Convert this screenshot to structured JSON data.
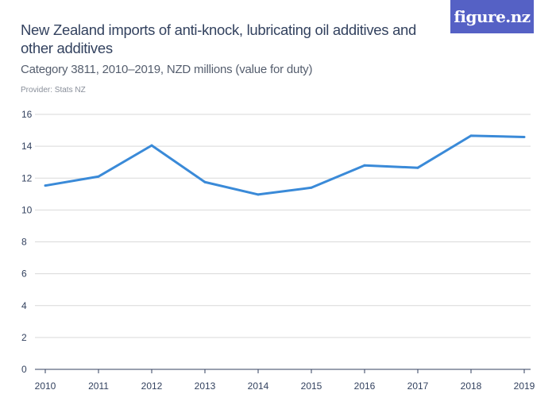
{
  "header": {
    "title": "New Zealand imports of anti-knock, lubricating oil additives and other additives",
    "subtitle": "Category 3811, 2010–2019, NZD millions (value for duty)",
    "provider": "Provider: Stats NZ",
    "logo_text": "figure.nz",
    "logo_color": "#5561c5"
  },
  "chart_data": {
    "type": "line",
    "title": "New Zealand imports of anti-knock, lubricating oil additives and other additives",
    "subtitle": "Category 3811, 2010–2019, NZD millions (value for duty)",
    "xlabel": "",
    "ylabel": "",
    "x": [
      "2010",
      "2011",
      "2012",
      "2013",
      "2014",
      "2015",
      "2016",
      "2017",
      "2018",
      "2019"
    ],
    "series": [
      {
        "values": [
          11.53,
          12.1,
          14.05,
          11.75,
          10.97,
          11.4,
          12.8,
          12.65,
          14.66,
          14.58
        ],
        "color": "#3a8ad8"
      }
    ],
    "ylim": [
      0,
      16
    ],
    "yticks": [
      0,
      2,
      4,
      6,
      8,
      10,
      12,
      14,
      16
    ],
    "grid": true,
    "legend": "none"
  }
}
